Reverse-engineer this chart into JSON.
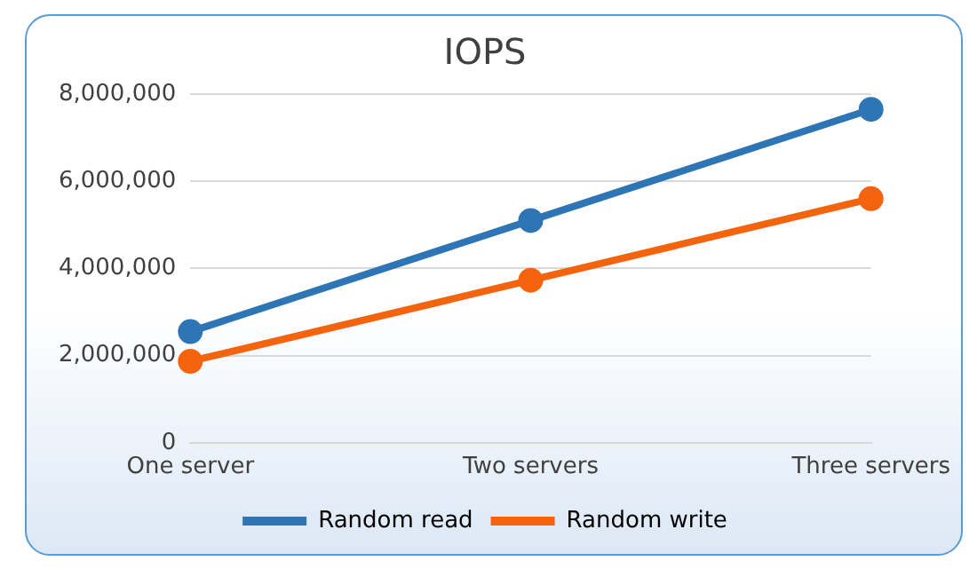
{
  "chart_data": {
    "type": "line",
    "title": "IOPS",
    "categories": [
      "One server",
      "Two servers",
      "Three servers"
    ],
    "series": [
      {
        "name": "Random read",
        "color": "#2e75b6",
        "values": [
          2550000,
          5100000,
          7650000
        ]
      },
      {
        "name": "Random write",
        "color": "#f4630e",
        "values": [
          1870000,
          3730000,
          5600000
        ]
      }
    ],
    "ylim": [
      0,
      8000000
    ],
    "yticks": [
      {
        "value": 0,
        "label": "0"
      },
      {
        "value": 2000000,
        "label": "2,000,000"
      },
      {
        "value": 4000000,
        "label": "4,000,000"
      },
      {
        "value": 6000000,
        "label": "6,000,000"
      },
      {
        "value": 8000000,
        "label": "8,000,000"
      }
    ],
    "grid": "y",
    "legend": "bottom",
    "marker": "circle",
    "line_style": "solid"
  }
}
